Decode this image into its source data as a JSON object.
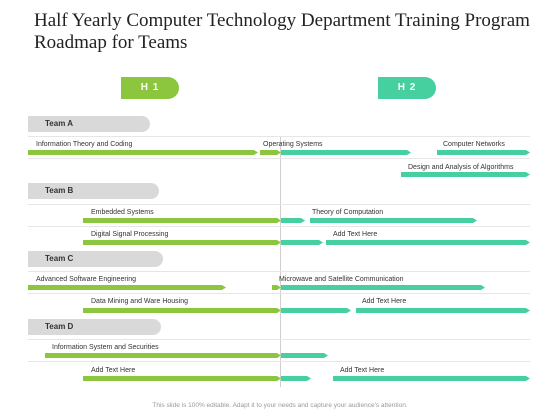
{
  "title": "Half Yearly Computer Technology Department Training Program Roadmap for Teams",
  "halves": [
    "H 1",
    "H 2"
  ],
  "teams": [
    "Team A",
    "Team B",
    "Team C",
    "Team D"
  ],
  "tasks": [
    "Information Theory and Coding",
    "Operating Systems",
    "Computer Networks",
    "Design and Analysis of Algorithms",
    "Embedded Systems",
    "Theory of Computation",
    "Digital Signal Processing",
    "Add Text Here",
    "Advanced Software Engineering",
    "Microwave and Satellite Communication",
    "Data Mining and Ware Housing",
    "Add Text Here",
    "Information System and Securities",
    "Add Text Here",
    "Add Text Here"
  ],
  "colors": {
    "h1": "#8cc63f",
    "h2": "#46d0a0",
    "team_pill": "#d9d9d9"
  },
  "footer": "This slide is 100% editable. Adapt it to your needs and capture your audience's attention."
}
